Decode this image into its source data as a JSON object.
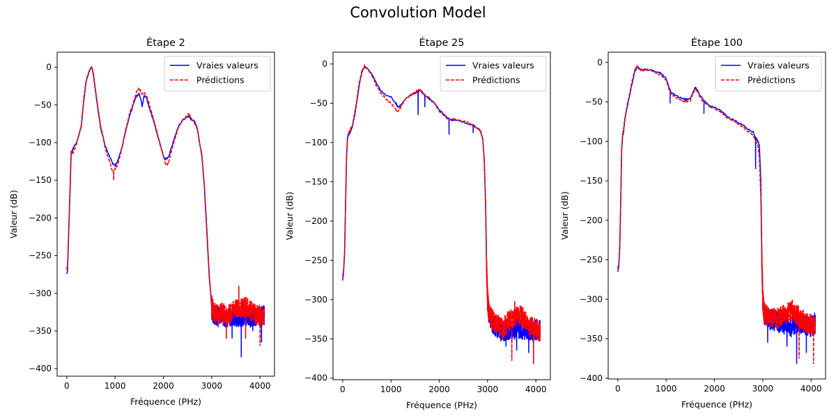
{
  "figure": {
    "title": "Convolution Model",
    "colors": {
      "true": "#0000ff",
      "pred": "#ff0000",
      "axis": "#000000",
      "background": "#ffffff"
    }
  },
  "chart_data": [
    {
      "type": "line",
      "title": "Étape 2",
      "xlabel": "Fréquence (PHz)",
      "ylabel": "Valeur (dB)",
      "xlim": [
        -200,
        4300
      ],
      "ylim": [
        -410,
        20
      ],
      "xticks": [
        0,
        1000,
        2000,
        3000,
        4000
      ],
      "yticks": [
        0,
        -50,
        -100,
        -150,
        -200,
        -250,
        -300,
        -350,
        -400
      ],
      "legend_position": "upper right",
      "grid": false,
      "series": [
        {
          "name": "Vraies valeurs",
          "style": "solid",
          "color": "#0000ff",
          "x": [
            0,
            15,
            30,
            50,
            70,
            90,
            120,
            150,
            200,
            300,
            350,
            400,
            450,
            500,
            520,
            550,
            600,
            700,
            800,
            900,
            950,
            1000,
            1050,
            1100,
            1150,
            1200,
            1300,
            1400,
            1450,
            1500,
            1530,
            1560,
            1600,
            1650,
            1700,
            1800,
            1900,
            2000,
            2050,
            2100,
            2150,
            2200,
            2300,
            2400,
            2500,
            2530,
            2560,
            2600,
            2650,
            2700,
            2800,
            2850,
            2900,
            2950,
            2980,
            3000,
            3020,
            3050,
            3100,
            3200,
            3300,
            3400,
            3500,
            3600,
            3700,
            3800,
            3900,
            4000,
            4090
          ],
          "y": [
            -275,
            -270,
            -240,
            -200,
            -160,
            -115,
            -110,
            -105,
            -100,
            -80,
            -45,
            -20,
            -8,
            -1,
            0,
            -10,
            -35,
            -80,
            -105,
            -120,
            -128,
            -130,
            -125,
            -115,
            -105,
            -90,
            -65,
            -45,
            -38,
            -35,
            -42,
            -52,
            -38,
            -40,
            -52,
            -72,
            -95,
            -118,
            -122,
            -120,
            -110,
            -100,
            -80,
            -70,
            -66,
            -65,
            -68,
            -70,
            -72,
            -80,
            -120,
            -160,
            -220,
            -280,
            -300,
            -320,
            -325,
            -328,
            -330,
            -330,
            -332,
            -330,
            -331,
            -333,
            -330,
            -332,
            -330,
            -331,
            -330
          ],
          "noise_region": [
            3000,
            4090
          ],
          "dips": [
            [
              3130,
              -345
            ],
            [
              3420,
              -360
            ],
            [
              3610,
              -385
            ],
            [
              3850,
              -350
            ],
            [
              4030,
              -365
            ]
          ]
        },
        {
          "name": "Prédictions",
          "style": "dashed",
          "color": "#ff0000",
          "x": [
            0,
            15,
            30,
            50,
            70,
            90,
            120,
            150,
            200,
            300,
            350,
            400,
            450,
            500,
            520,
            550,
            600,
            700,
            800,
            900,
            950,
            1000,
            1050,
            1100,
            1150,
            1200,
            1300,
            1400,
            1450,
            1500,
            1530,
            1560,
            1600,
            1650,
            1700,
            1800,
            1900,
            2000,
            2050,
            2100,
            2150,
            2200,
            2300,
            2400,
            2500,
            2530,
            2560,
            2600,
            2650,
            2700,
            2800,
            2850,
            2900,
            2950,
            2980,
            3000,
            3020,
            3050,
            3100,
            3200,
            3300,
            3400,
            3500,
            3600,
            3700,
            3800,
            3900,
            4000,
            4090
          ],
          "y": [
            -268,
            -265,
            -235,
            -195,
            -155,
            -112,
            -115,
            -110,
            -102,
            -78,
            -43,
            -18,
            -7,
            0,
            -1,
            -8,
            -33,
            -78,
            -108,
            -128,
            -140,
            -135,
            -130,
            -118,
            -105,
            -88,
            -62,
            -42,
            -32,
            -28,
            -32,
            -36,
            -33,
            -38,
            -48,
            -70,
            -94,
            -118,
            -130,
            -128,
            -115,
            -103,
            -82,
            -70,
            -64,
            -62,
            -66,
            -70,
            -75,
            -82,
            -118,
            -160,
            -215,
            -275,
            -300,
            -315,
            -320,
            -325,
            -328,
            -326,
            -330,
            -325,
            -322,
            -320,
            -318,
            -322,
            -328,
            -330,
            -328
          ],
          "noise_region": [
            3000,
            4090
          ],
          "dips": [
            [
              970,
              -150
            ],
            [
              3300,
              -360
            ],
            [
              3560,
              -290
            ],
            [
              3700,
              -360
            ],
            [
              4000,
              -370
            ]
          ]
        }
      ]
    },
    {
      "type": "line",
      "title": "Étape 25",
      "xlabel": "Fréquence (PHz)",
      "ylabel": "Valeur (dB)",
      "xlim": [
        -200,
        4300
      ],
      "ylim": [
        -402,
        15
      ],
      "xticks": [
        0,
        1000,
        2000,
        3000,
        4000
      ],
      "yticks": [
        0,
        -50,
        -100,
        -150,
        -200,
        -250,
        -300,
        -350,
        -400
      ],
      "legend_position": "upper right",
      "grid": false,
      "series": [
        {
          "name": "Vraies valeurs",
          "style": "solid",
          "color": "#0000ff",
          "x": [
            0,
            20,
            40,
            60,
            80,
            100,
            120,
            150,
            200,
            250,
            300,
            350,
            400,
            450,
            500,
            600,
            700,
            800,
            900,
            1000,
            1100,
            1150,
            1200,
            1300,
            1400,
            1500,
            1550,
            1600,
            1650,
            1700,
            1800,
            1900,
            2000,
            2100,
            2200,
            2250,
            2300,
            2400,
            2500,
            2600,
            2700,
            2800,
            2850,
            2900,
            2930,
            2960,
            2980,
            3000,
            3030,
            3100,
            3200,
            3300,
            3400,
            3500,
            3600,
            3700,
            3800,
            3900,
            4000,
            4090
          ],
          "y": [
            -275,
            -265,
            -240,
            -180,
            -120,
            -95,
            -90,
            -88,
            -80,
            -65,
            -45,
            -25,
            -10,
            -4,
            -5,
            -12,
            -25,
            -35,
            -40,
            -42,
            -50,
            -55,
            -53,
            -45,
            -40,
            -37,
            -35,
            -33,
            -37,
            -40,
            -45,
            -50,
            -58,
            -65,
            -70,
            -72,
            -71,
            -72,
            -74,
            -76,
            -78,
            -82,
            -85,
            -95,
            -120,
            -180,
            -260,
            -300,
            -320,
            -330,
            -335,
            -340,
            -338,
            -340,
            -335,
            -340,
            -338,
            -340,
            -338,
            -340
          ],
          "noise_region": [
            2980,
            4090
          ],
          "dips": [
            [
              1560,
              -65
            ],
            [
              1700,
              -55
            ],
            [
              2200,
              -90
            ],
            [
              2700,
              -88
            ],
            [
              3380,
              -360
            ],
            [
              3600,
              -365
            ],
            [
              3850,
              -368
            ]
          ]
        },
        {
          "name": "Prédictions",
          "style": "dashed",
          "color": "#ff0000",
          "x": [
            0,
            20,
            40,
            60,
            80,
            100,
            120,
            150,
            200,
            250,
            300,
            350,
            400,
            450,
            500,
            600,
            700,
            800,
            900,
            1000,
            1100,
            1150,
            1200,
            1300,
            1400,
            1500,
            1550,
            1600,
            1650,
            1700,
            1800,
            1900,
            2000,
            2100,
            2200,
            2250,
            2300,
            2400,
            2500,
            2600,
            2700,
            2800,
            2850,
            2900,
            2930,
            2960,
            2980,
            3000,
            3030,
            3100,
            3200,
            3300,
            3400,
            3500,
            3600,
            3700,
            3800,
            3900,
            4000,
            4090
          ],
          "y": [
            -270,
            -262,
            -238,
            -178,
            -118,
            -92,
            -88,
            -85,
            -78,
            -62,
            -42,
            -22,
            -8,
            -3,
            -5,
            -14,
            -28,
            -38,
            -45,
            -50,
            -58,
            -60,
            -55,
            -45,
            -40,
            -36,
            -34,
            -32,
            -36,
            -40,
            -44,
            -50,
            -60,
            -66,
            -72,
            -70,
            -70,
            -72,
            -73,
            -75,
            -80,
            -82,
            -85,
            -95,
            -120,
            -178,
            -258,
            -300,
            -318,
            -326,
            -330,
            -338,
            -330,
            -325,
            -322,
            -320,
            -330,
            -335,
            -338,
            -340
          ],
          "noise_region": [
            2980,
            4090
          ],
          "dips": [
            [
              3500,
              -378
            ],
            [
              3950,
              -382
            ],
            [
              3560,
              -302
            ]
          ]
        }
      ]
    },
    {
      "type": "line",
      "title": "Étape 100",
      "xlabel": "Fréquence (PHz)",
      "ylabel": "Valeur (dB)",
      "xlim": [
        -200,
        4300
      ],
      "ylim": [
        -401,
        13
      ],
      "xticks": [
        0,
        1000,
        2000,
        3000,
        4000
      ],
      "yticks": [
        0,
        -50,
        -100,
        -150,
        -200,
        -250,
        -300,
        -350,
        -400
      ],
      "legend_position": "upper right",
      "grid": false,
      "series": [
        {
          "name": "Vraies valeurs",
          "style": "solid",
          "color": "#0000ff",
          "x": [
            0,
            20,
            40,
            60,
            80,
            100,
            120,
            150,
            200,
            250,
            300,
            350,
            400,
            450,
            500,
            600,
            700,
            800,
            900,
            1000,
            1050,
            1100,
            1200,
            1300,
            1400,
            1500,
            1550,
            1600,
            1650,
            1700,
            1800,
            1900,
            2000,
            2100,
            2200,
            2300,
            2400,
            2500,
            2600,
            2700,
            2800,
            2850,
            2900,
            2930,
            2960,
            2980,
            3000,
            3030,
            3100,
            3200,
            3300,
            3400,
            3500,
            3600,
            3700,
            3800,
            3900,
            4000,
            4090
          ],
          "y": [
            -265,
            -258,
            -235,
            -175,
            -110,
            -92,
            -88,
            -70,
            -55,
            -40,
            -25,
            -12,
            -6,
            -8,
            -9,
            -9,
            -10,
            -12,
            -14,
            -20,
            -30,
            -38,
            -42,
            -45,
            -47,
            -46,
            -38,
            -32,
            -35,
            -42,
            -50,
            -55,
            -57,
            -60,
            -65,
            -70,
            -73,
            -76,
            -80,
            -85,
            -88,
            -95,
            -100,
            -105,
            -150,
            -240,
            -300,
            -320,
            -325,
            -326,
            -328,
            -330,
            -332,
            -335,
            -330,
            -330,
            -332,
            -335,
            -330
          ],
          "noise_region": [
            2980,
            4090
          ],
          "dips": [
            [
              1080,
              -52
            ],
            [
              1400,
              -50
            ],
            [
              1780,
              -65
            ],
            [
              2850,
              -135
            ],
            [
              3100,
              -355
            ],
            [
              3500,
              -360
            ],
            [
              3700,
              -382
            ],
            [
              3900,
              -368
            ]
          ]
        },
        {
          "name": "Prédictions",
          "style": "dashed",
          "color": "#ff0000",
          "x": [
            0,
            20,
            40,
            60,
            80,
            100,
            120,
            150,
            200,
            250,
            300,
            350,
            400,
            450,
            500,
            600,
            700,
            800,
            900,
            1000,
            1050,
            1100,
            1200,
            1300,
            1400,
            1500,
            1550,
            1600,
            1650,
            1700,
            1800,
            1900,
            2000,
            2100,
            2200,
            2300,
            2400,
            2500,
            2600,
            2700,
            2800,
            2850,
            2900,
            2930,
            2960,
            2980,
            3000,
            3030,
            3100,
            3200,
            3300,
            3400,
            3500,
            3600,
            3700,
            3800,
            3900,
            4000,
            4090
          ],
          "y": [
            -262,
            -255,
            -232,
            -172,
            -108,
            -90,
            -85,
            -68,
            -52,
            -38,
            -22,
            -10,
            -5,
            -8,
            -10,
            -10,
            -11,
            -14,
            -16,
            -22,
            -32,
            -40,
            -44,
            -48,
            -50,
            -48,
            -40,
            -34,
            -36,
            -44,
            -52,
            -56,
            -58,
            -62,
            -67,
            -72,
            -74,
            -78,
            -82,
            -88,
            -92,
            -100,
            -105,
            -120,
            -170,
            -245,
            -300,
            -318,
            -322,
            -322,
            -325,
            -320,
            -318,
            -316,
            -320,
            -325,
            -330,
            -332,
            -330
          ],
          "noise_region": [
            2980,
            4090
          ],
          "dips": [
            [
              3610,
              -300
            ],
            [
              3750,
              -375
            ],
            [
              4050,
              -382
            ]
          ]
        }
      ]
    }
  ]
}
